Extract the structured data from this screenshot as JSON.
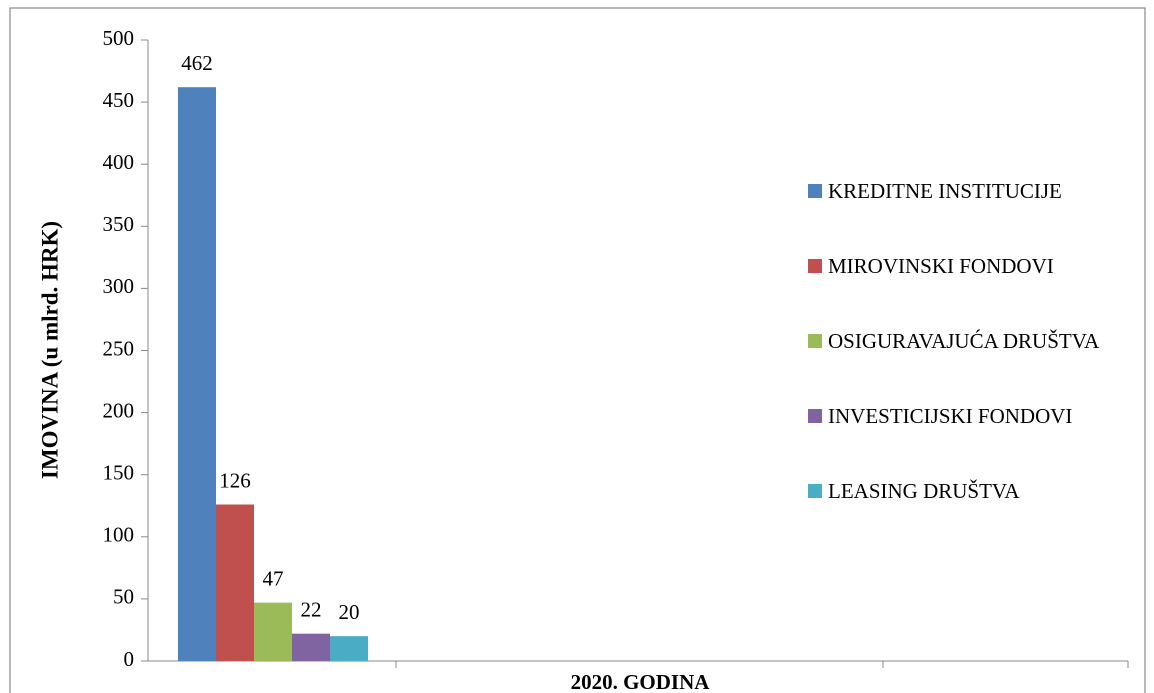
{
  "chart_data": {
    "type": "bar",
    "y_label": "IMOVINA (u mlrd. HRK)",
    "categories": [
      "2020. GODINA"
    ],
    "series": [
      {
        "name": "KREDITNE INSTITUCIJE",
        "color": "#4f81bd",
        "values": [
          462
        ]
      },
      {
        "name": "MIROVINSKI FONDOVI",
        "color": "#c0504d",
        "values": [
          126
        ]
      },
      {
        "name": "OSIGURAVAJUĆA DRUŠTVA",
        "color": "#9bbb59",
        "values": [
          47
        ]
      },
      {
        "name": "INVESTICIJSKI FONDOVI",
        "color": "#8064a2",
        "values": [
          22
        ]
      },
      {
        "name": "LEASING DRUŠTVA",
        "color": "#4bacc6",
        "values": [
          20
        ]
      }
    ],
    "ylim": [
      0,
      500
    ],
    "yticks": [
      0,
      50,
      100,
      150,
      200,
      250,
      300,
      350,
      400,
      450,
      500
    ],
    "legend": "right"
  }
}
